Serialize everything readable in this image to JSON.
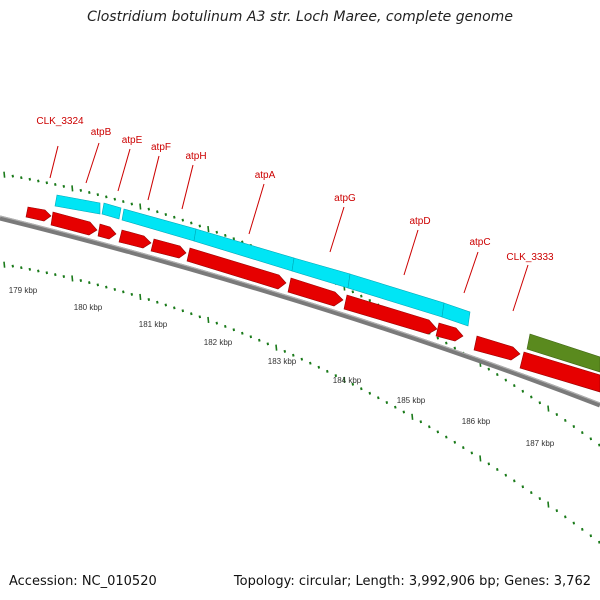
{
  "title": "Clostridium botulinum A3 str. Loch Maree, complete genome",
  "footer": {
    "accession": "Accession: NC_010520",
    "summary": "Topology: circular; Length: 3,992,906 bp; Genes: 3,762"
  },
  "colors": {
    "gene_label": "#cc0000",
    "cds_forward": "#e60000",
    "feature_cyan": "#00e5f5",
    "feature_green": "#5a8a1e",
    "backbone": "#808080",
    "tick": "#1a7a1a"
  },
  "scale": {
    "unit": "kbp",
    "labels": [
      "179 kbp",
      "180 kbp",
      "181 kbp",
      "182 kbp",
      "183 kbp",
      "184 kbp",
      "185 kbp",
      "186 kbp",
      "187 kbp"
    ]
  },
  "gene_labels": [
    "CLK_3324",
    "atpB",
    "atpE",
    "atpF",
    "atpH",
    "atpA",
    "atpG",
    "atpD",
    "atpC",
    "CLK_3333"
  ]
}
